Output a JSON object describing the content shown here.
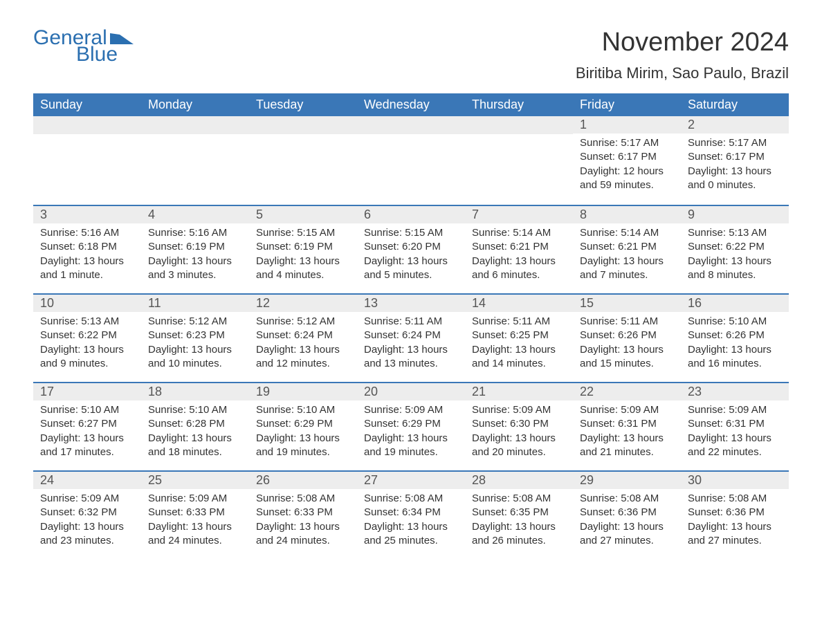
{
  "logo": {
    "word1": "General",
    "word2": "Blue"
  },
  "title": "November 2024",
  "location": "Biritiba Mirim, Sao Paulo, Brazil",
  "colors": {
    "header_bg": "#3a77b7",
    "header_text": "#ffffff",
    "daynum_bg": "#ededed",
    "row_border": "#3a77b7",
    "body_text": "#333333",
    "logo_color": "#2b6fb0",
    "page_bg": "#ffffff"
  },
  "typography": {
    "title_fontsize": 38,
    "location_fontsize": 22,
    "weekday_fontsize": 18,
    "daynum_fontsize": 18,
    "body_fontsize": 15,
    "logo_fontsize": 30
  },
  "layout": {
    "type": "table",
    "columns": 7,
    "rows": 5,
    "first_weekday": "Sunday",
    "month_start_column_index": 5
  },
  "weekdays": [
    "Sunday",
    "Monday",
    "Tuesday",
    "Wednesday",
    "Thursday",
    "Friday",
    "Saturday"
  ],
  "weeks": [
    [
      null,
      null,
      null,
      null,
      null,
      {
        "n": "1",
        "sunrise": "Sunrise: 5:17 AM",
        "sunset": "Sunset: 6:17 PM",
        "daylight": "Daylight: 12 hours and 59 minutes."
      },
      {
        "n": "2",
        "sunrise": "Sunrise: 5:17 AM",
        "sunset": "Sunset: 6:17 PM",
        "daylight": "Daylight: 13 hours and 0 minutes."
      }
    ],
    [
      {
        "n": "3",
        "sunrise": "Sunrise: 5:16 AM",
        "sunset": "Sunset: 6:18 PM",
        "daylight": "Daylight: 13 hours and 1 minute."
      },
      {
        "n": "4",
        "sunrise": "Sunrise: 5:16 AM",
        "sunset": "Sunset: 6:19 PM",
        "daylight": "Daylight: 13 hours and 3 minutes."
      },
      {
        "n": "5",
        "sunrise": "Sunrise: 5:15 AM",
        "sunset": "Sunset: 6:19 PM",
        "daylight": "Daylight: 13 hours and 4 minutes."
      },
      {
        "n": "6",
        "sunrise": "Sunrise: 5:15 AM",
        "sunset": "Sunset: 6:20 PM",
        "daylight": "Daylight: 13 hours and 5 minutes."
      },
      {
        "n": "7",
        "sunrise": "Sunrise: 5:14 AM",
        "sunset": "Sunset: 6:21 PM",
        "daylight": "Daylight: 13 hours and 6 minutes."
      },
      {
        "n": "8",
        "sunrise": "Sunrise: 5:14 AM",
        "sunset": "Sunset: 6:21 PM",
        "daylight": "Daylight: 13 hours and 7 minutes."
      },
      {
        "n": "9",
        "sunrise": "Sunrise: 5:13 AM",
        "sunset": "Sunset: 6:22 PM",
        "daylight": "Daylight: 13 hours and 8 minutes."
      }
    ],
    [
      {
        "n": "10",
        "sunrise": "Sunrise: 5:13 AM",
        "sunset": "Sunset: 6:22 PM",
        "daylight": "Daylight: 13 hours and 9 minutes."
      },
      {
        "n": "11",
        "sunrise": "Sunrise: 5:12 AM",
        "sunset": "Sunset: 6:23 PM",
        "daylight": "Daylight: 13 hours and 10 minutes."
      },
      {
        "n": "12",
        "sunrise": "Sunrise: 5:12 AM",
        "sunset": "Sunset: 6:24 PM",
        "daylight": "Daylight: 13 hours and 12 minutes."
      },
      {
        "n": "13",
        "sunrise": "Sunrise: 5:11 AM",
        "sunset": "Sunset: 6:24 PM",
        "daylight": "Daylight: 13 hours and 13 minutes."
      },
      {
        "n": "14",
        "sunrise": "Sunrise: 5:11 AM",
        "sunset": "Sunset: 6:25 PM",
        "daylight": "Daylight: 13 hours and 14 minutes."
      },
      {
        "n": "15",
        "sunrise": "Sunrise: 5:11 AM",
        "sunset": "Sunset: 6:26 PM",
        "daylight": "Daylight: 13 hours and 15 minutes."
      },
      {
        "n": "16",
        "sunrise": "Sunrise: 5:10 AM",
        "sunset": "Sunset: 6:26 PM",
        "daylight": "Daylight: 13 hours and 16 minutes."
      }
    ],
    [
      {
        "n": "17",
        "sunrise": "Sunrise: 5:10 AM",
        "sunset": "Sunset: 6:27 PM",
        "daylight": "Daylight: 13 hours and 17 minutes."
      },
      {
        "n": "18",
        "sunrise": "Sunrise: 5:10 AM",
        "sunset": "Sunset: 6:28 PM",
        "daylight": "Daylight: 13 hours and 18 minutes."
      },
      {
        "n": "19",
        "sunrise": "Sunrise: 5:10 AM",
        "sunset": "Sunset: 6:29 PM",
        "daylight": "Daylight: 13 hours and 19 minutes."
      },
      {
        "n": "20",
        "sunrise": "Sunrise: 5:09 AM",
        "sunset": "Sunset: 6:29 PM",
        "daylight": "Daylight: 13 hours and 19 minutes."
      },
      {
        "n": "21",
        "sunrise": "Sunrise: 5:09 AM",
        "sunset": "Sunset: 6:30 PM",
        "daylight": "Daylight: 13 hours and 20 minutes."
      },
      {
        "n": "22",
        "sunrise": "Sunrise: 5:09 AM",
        "sunset": "Sunset: 6:31 PM",
        "daylight": "Daylight: 13 hours and 21 minutes."
      },
      {
        "n": "23",
        "sunrise": "Sunrise: 5:09 AM",
        "sunset": "Sunset: 6:31 PM",
        "daylight": "Daylight: 13 hours and 22 minutes."
      }
    ],
    [
      {
        "n": "24",
        "sunrise": "Sunrise: 5:09 AM",
        "sunset": "Sunset: 6:32 PM",
        "daylight": "Daylight: 13 hours and 23 minutes."
      },
      {
        "n": "25",
        "sunrise": "Sunrise: 5:09 AM",
        "sunset": "Sunset: 6:33 PM",
        "daylight": "Daylight: 13 hours and 24 minutes."
      },
      {
        "n": "26",
        "sunrise": "Sunrise: 5:08 AM",
        "sunset": "Sunset: 6:33 PM",
        "daylight": "Daylight: 13 hours and 24 minutes."
      },
      {
        "n": "27",
        "sunrise": "Sunrise: 5:08 AM",
        "sunset": "Sunset: 6:34 PM",
        "daylight": "Daylight: 13 hours and 25 minutes."
      },
      {
        "n": "28",
        "sunrise": "Sunrise: 5:08 AM",
        "sunset": "Sunset: 6:35 PM",
        "daylight": "Daylight: 13 hours and 26 minutes."
      },
      {
        "n": "29",
        "sunrise": "Sunrise: 5:08 AM",
        "sunset": "Sunset: 6:36 PM",
        "daylight": "Daylight: 13 hours and 27 minutes."
      },
      {
        "n": "30",
        "sunrise": "Sunrise: 5:08 AM",
        "sunset": "Sunset: 6:36 PM",
        "daylight": "Daylight: 13 hours and 27 minutes."
      }
    ]
  ]
}
